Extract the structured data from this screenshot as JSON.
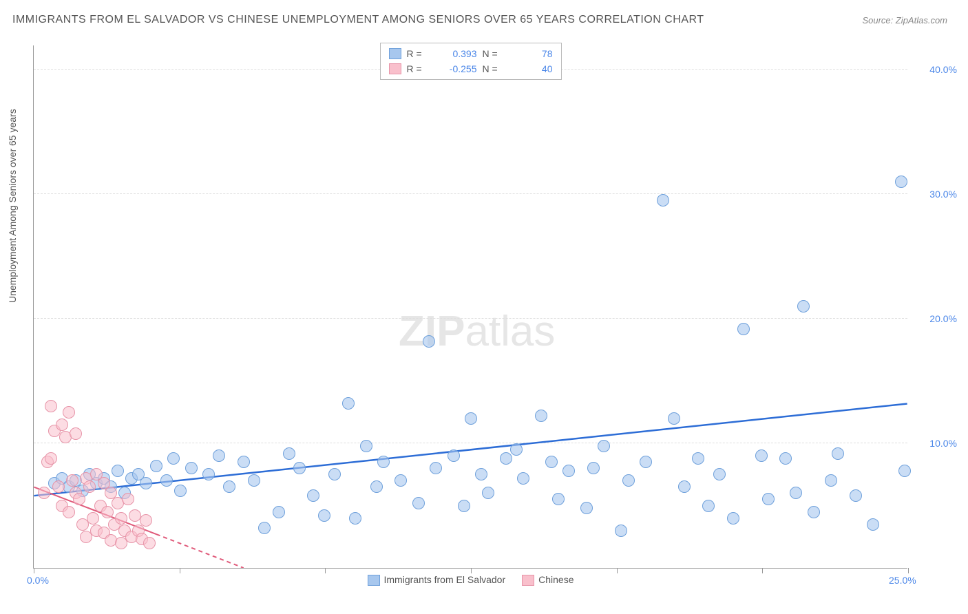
{
  "title": "IMMIGRANTS FROM EL SALVADOR VS CHINESE UNEMPLOYMENT AMONG SENIORS OVER 65 YEARS CORRELATION CHART",
  "source": "Source: ZipAtlas.com",
  "ylabel": "Unemployment Among Seniors over 65 years",
  "watermark_a": "ZIP",
  "watermark_b": "atlas",
  "chart": {
    "type": "scatter",
    "xlim": [
      0,
      25
    ],
    "ylim": [
      0,
      42
    ],
    "xtick_positions": [
      0,
      4.17,
      8.33,
      12.5,
      16.67,
      20.83,
      25
    ],
    "xtick_labels_shown": {
      "0": "0.0%",
      "25": "25.0%"
    },
    "ytick_positions": [
      10,
      20,
      30,
      40
    ],
    "ytick_labels": [
      "10.0%",
      "20.0%",
      "30.0%",
      "40.0%"
    ],
    "grid_color": "#dddddd",
    "axis_color": "#999999",
    "background_color": "#ffffff",
    "marker_radius": 9,
    "series": [
      {
        "name": "Immigrants from El Salvador",
        "color_fill": "#a7c7ee",
        "color_stroke": "#6ea0db",
        "R": "0.393",
        "N": "78",
        "trend": {
          "x1": 0,
          "y1": 5.8,
          "x2": 25,
          "y2": 13.2,
          "color": "#2d6dd6",
          "dash": false
        },
        "points": [
          [
            0.6,
            6.8
          ],
          [
            0.8,
            7.2
          ],
          [
            1.0,
            6.5
          ],
          [
            1.2,
            7.0
          ],
          [
            1.4,
            6.2
          ],
          [
            1.6,
            7.5
          ],
          [
            1.8,
            6.8
          ],
          [
            2.0,
            7.2
          ],
          [
            2.2,
            6.5
          ],
          [
            2.4,
            7.8
          ],
          [
            2.6,
            6.0
          ],
          [
            2.8,
            7.2
          ],
          [
            3.0,
            7.5
          ],
          [
            3.2,
            6.8
          ],
          [
            3.5,
            8.2
          ],
          [
            3.8,
            7.0
          ],
          [
            4.0,
            8.8
          ],
          [
            4.2,
            6.2
          ],
          [
            4.5,
            8.0
          ],
          [
            5.0,
            7.5
          ],
          [
            5.3,
            9.0
          ],
          [
            5.6,
            6.5
          ],
          [
            6.0,
            8.5
          ],
          [
            6.3,
            7.0
          ],
          [
            6.6,
            3.2
          ],
          [
            7.0,
            4.5
          ],
          [
            7.3,
            9.2
          ],
          [
            7.6,
            8.0
          ],
          [
            8.0,
            5.8
          ],
          [
            8.3,
            4.2
          ],
          [
            8.6,
            7.5
          ],
          [
            9.0,
            13.2
          ],
          [
            9.2,
            4.0
          ],
          [
            9.5,
            9.8
          ],
          [
            9.8,
            6.5
          ],
          [
            10.0,
            8.5
          ],
          [
            10.5,
            7.0
          ],
          [
            11.0,
            5.2
          ],
          [
            11.3,
            18.2
          ],
          [
            11.5,
            8.0
          ],
          [
            12.0,
            9.0
          ],
          [
            12.3,
            5.0
          ],
          [
            12.5,
            12.0
          ],
          [
            12.8,
            7.5
          ],
          [
            13.0,
            6.0
          ],
          [
            13.5,
            8.8
          ],
          [
            13.8,
            9.5
          ],
          [
            14.0,
            7.2
          ],
          [
            14.5,
            12.2
          ],
          [
            14.8,
            8.5
          ],
          [
            15.0,
            5.5
          ],
          [
            15.3,
            7.8
          ],
          [
            15.8,
            4.8
          ],
          [
            16.0,
            8.0
          ],
          [
            16.3,
            9.8
          ],
          [
            16.8,
            3.0
          ],
          [
            17.0,
            7.0
          ],
          [
            17.5,
            8.5
          ],
          [
            18.0,
            29.5
          ],
          [
            18.3,
            12.0
          ],
          [
            18.6,
            6.5
          ],
          [
            19.0,
            8.8
          ],
          [
            19.3,
            5.0
          ],
          [
            19.6,
            7.5
          ],
          [
            20.0,
            4.0
          ],
          [
            20.3,
            19.2
          ],
          [
            20.8,
            9.0
          ],
          [
            21.0,
            5.5
          ],
          [
            21.5,
            8.8
          ],
          [
            21.8,
            6.0
          ],
          [
            22.0,
            21.0
          ],
          [
            22.3,
            4.5
          ],
          [
            22.8,
            7.0
          ],
          [
            23.0,
            9.2
          ],
          [
            23.5,
            5.8
          ],
          [
            24.0,
            3.5
          ],
          [
            24.8,
            31.0
          ],
          [
            24.9,
            7.8
          ]
        ]
      },
      {
        "name": "Chinese",
        "color_fill": "#f9c0cc",
        "color_stroke": "#e794a8",
        "R": "-0.255",
        "N": "40",
        "trend": {
          "x1": 0,
          "y1": 6.5,
          "x2": 6,
          "y2": 0,
          "color": "#e05a7a",
          "dash_after": 3.5
        },
        "points": [
          [
            0.3,
            6.0
          ],
          [
            0.4,
            8.5
          ],
          [
            0.5,
            8.8
          ],
          [
            0.5,
            13.0
          ],
          [
            0.6,
            11.0
          ],
          [
            0.7,
            6.5
          ],
          [
            0.8,
            11.5
          ],
          [
            0.8,
            5.0
          ],
          [
            0.9,
            10.5
          ],
          [
            1.0,
            12.5
          ],
          [
            1.0,
            4.5
          ],
          [
            1.1,
            7.0
          ],
          [
            1.2,
            6.0
          ],
          [
            1.2,
            10.8
          ],
          [
            1.3,
            5.5
          ],
          [
            1.4,
            3.5
          ],
          [
            1.5,
            7.2
          ],
          [
            1.5,
            2.5
          ],
          [
            1.6,
            6.5
          ],
          [
            1.7,
            4.0
          ],
          [
            1.8,
            7.5
          ],
          [
            1.8,
            3.0
          ],
          [
            1.9,
            5.0
          ],
          [
            2.0,
            2.8
          ],
          [
            2.0,
            6.8
          ],
          [
            2.1,
            4.5
          ],
          [
            2.2,
            2.2
          ],
          [
            2.2,
            6.0
          ],
          [
            2.3,
            3.5
          ],
          [
            2.4,
            5.2
          ],
          [
            2.5,
            2.0
          ],
          [
            2.5,
            4.0
          ],
          [
            2.6,
            3.0
          ],
          [
            2.7,
            5.5
          ],
          [
            2.8,
            2.5
          ],
          [
            2.9,
            4.2
          ],
          [
            3.0,
            3.0
          ],
          [
            3.1,
            2.3
          ],
          [
            3.2,
            3.8
          ],
          [
            3.3,
            2.0
          ]
        ]
      }
    ]
  },
  "legend_top": {
    "R_label": "R =",
    "N_label": "N ="
  },
  "legend_bottom": {
    "series1": "Immigrants from El Salvador",
    "series2": "Chinese"
  }
}
